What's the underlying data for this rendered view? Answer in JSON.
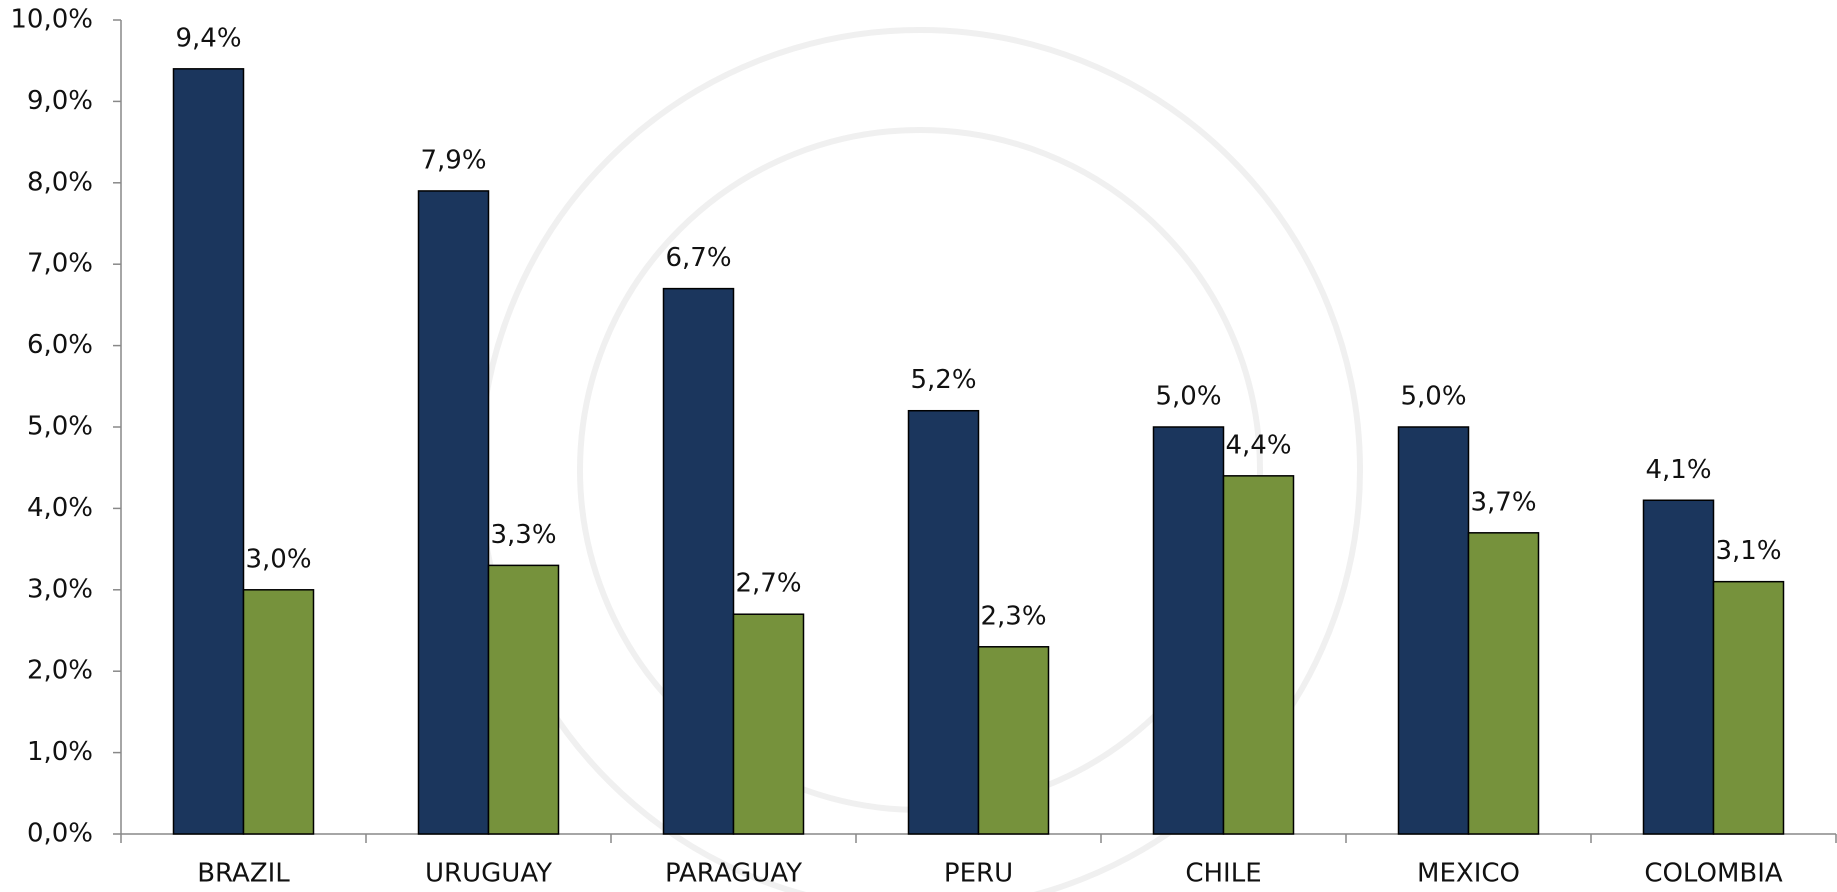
{
  "chart_data": {
    "type": "bar",
    "categories": [
      "BRAZIL",
      "URUGUAY",
      "PARAGUAY",
      "PERU",
      "CHILE",
      "MEXICO",
      "COLOMBIA"
    ],
    "series": [
      {
        "color": "#1b365d",
        "values": [
          9.4,
          7.9,
          6.7,
          5.2,
          5.0,
          5.0,
          4.1
        ],
        "value_labels": [
          "9,4%",
          "7,9%",
          "6,7%",
          "5,2%",
          "5,0%",
          "5,0%",
          "4,1%"
        ]
      },
      {
        "color": "#76923c",
        "values": [
          3.0,
          3.3,
          2.7,
          2.3,
          4.4,
          3.7,
          3.1
        ],
        "value_labels": [
          "3,0%",
          "3,3%",
          "2,7%",
          "2,3%",
          "4,4%",
          "3,7%",
          "3,1%"
        ]
      }
    ],
    "ylim": [
      0,
      10
    ],
    "yticks": [
      {
        "value": 0,
        "label": "0,0%"
      },
      {
        "value": 1,
        "label": "1,0%"
      },
      {
        "value": 2,
        "label": "2,0%"
      },
      {
        "value": 3,
        "label": "3,0%"
      },
      {
        "value": 4,
        "label": "4,0%"
      },
      {
        "value": 5,
        "label": "5,0%"
      },
      {
        "value": 6,
        "label": "6,0%"
      },
      {
        "value": 7,
        "label": "7,0%"
      },
      {
        "value": 8,
        "label": "8,0%"
      },
      {
        "value": 9,
        "label": "9,0%"
      },
      {
        "value": 10,
        "label": "10,0%"
      }
    ],
    "grid": false
  }
}
